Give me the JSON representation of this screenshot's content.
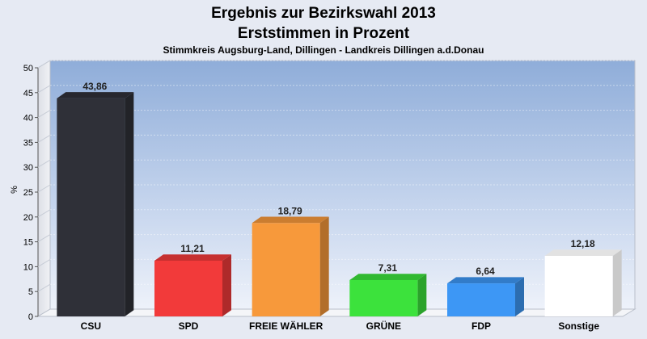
{
  "chart_data": {
    "type": "bar",
    "title": "Ergebnis zur Bezirkswahl 2013",
    "title2": "Erststimmen in Prozent",
    "subtitle": "Stimmkreis Augsburg-Land, Dillingen - Landkreis Dillingen a.d.Donau",
    "ylabel": "%",
    "xlabel": "",
    "ylim": [
      0,
      50
    ],
    "yticks": [
      0,
      5,
      10,
      15,
      20,
      25,
      30,
      35,
      40,
      45,
      50
    ],
    "grid": true,
    "categories": [
      "CSU",
      "SPD",
      "FREIE WÄHLER",
      "GRÜNE",
      "FDP",
      "Sonstige"
    ],
    "values": [
      43.86,
      11.21,
      18.79,
      7.31,
      6.64,
      12.18
    ],
    "value_labels": [
      "43,86",
      "11,21",
      "18,79",
      "7,31",
      "6,64",
      "12,18"
    ],
    "colors": [
      "#2f3038",
      "#f23a3a",
      "#f7993b",
      "#3ce23c",
      "#3d97f5",
      "#ffffff"
    ]
  }
}
